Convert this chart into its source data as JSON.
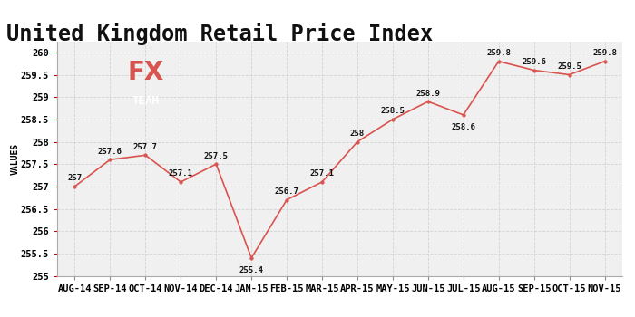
{
  "title": "United Kingdom Retail Price Index",
  "ylabel": "VALUES",
  "categories": [
    "AUG-14",
    "SEP-14",
    "OCT-14",
    "NOV-14",
    "DEC-14",
    "JAN-15",
    "FEB-15",
    "MAR-15",
    "APR-15",
    "MAY-15",
    "JUN-15",
    "JUL-15",
    "AUG-15",
    "SEP-15",
    "OCT-15",
    "NOV-15"
  ],
  "values": [
    257.0,
    257.6,
    257.7,
    257.1,
    257.5,
    255.4,
    256.7,
    257.1,
    258.0,
    258.5,
    258.9,
    258.6,
    259.8,
    259.6,
    259.5,
    259.8
  ],
  "line_color": "#d9534f",
  "marker_color": "#d9534f",
  "ylim_min": 255.0,
  "ylim_max": 260.25,
  "ytick_values": [
    255.0,
    255.5,
    256.0,
    256.5,
    257.0,
    257.5,
    258.0,
    258.5,
    259.0,
    259.5,
    260.0
  ],
  "grid_color": "#cccccc",
  "bg_color": "#ffffff",
  "plot_bg_color": "#f0f0f0",
  "title_fontsize": 17,
  "ylabel_fontsize": 7,
  "tick_fontsize": 7.5,
  "label_fontsize": 6.5,
  "logo_box_color": "#6b6b6b",
  "logo_fx_color": "#d9534f",
  "logo_team_color": "#ffffff"
}
